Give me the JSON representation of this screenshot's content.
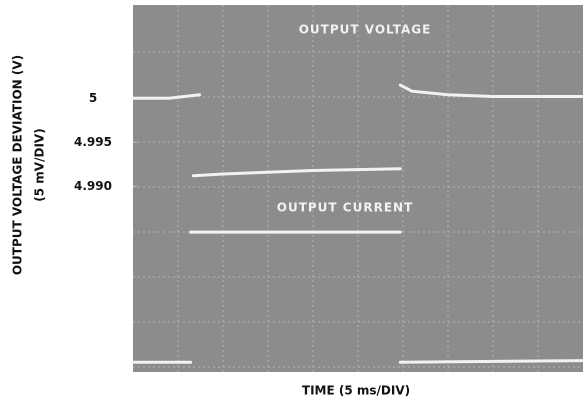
{
  "chart_data": {
    "type": "line",
    "ylabel": "OUTPUT VOLTAGE DEVIATION (V)",
    "ylabel_sub": "(5 mV/DIV)",
    "xlabel": "TIME (5 ms/DIV)",
    "xlim": [
      0,
      50
    ],
    "ylim": [
      4.9689,
      5.0106
    ],
    "yticks": [
      5,
      4.995,
      {
        "value": 4.99,
        "label": "4.990"
      }
    ],
    "annotations": [
      "OUTPUT VOLTAGE",
      "OUTPUT CURRENT"
    ],
    "series": [
      {
        "name": "OUTPUT VOLTAGE",
        "color": "#f2f2f2",
        "x": [
          0,
          4,
          7.4,
          null,
          6.7,
          10,
          20,
          29.7,
          null,
          29.7,
          31,
          35,
          40,
          50
        ],
        "values": [
          5.0,
          5.0,
          5.0004,
          null,
          4.9912,
          4.9914,
          4.9918,
          4.992,
          null,
          5.0015,
          5.0008,
          5.0004,
          5.0002,
          5.0002
        ]
      },
      {
        "name": "OUTPUT CURRENT",
        "color": "#f2f2f2",
        "x": [
          0,
          6.4,
          null,
          6.4,
          29.7,
          null,
          29.7,
          50
        ],
        "values": [
          4.97,
          4.97,
          null,
          4.9848,
          4.9848,
          null,
          4.97,
          4.9702
        ]
      }
    ]
  }
}
